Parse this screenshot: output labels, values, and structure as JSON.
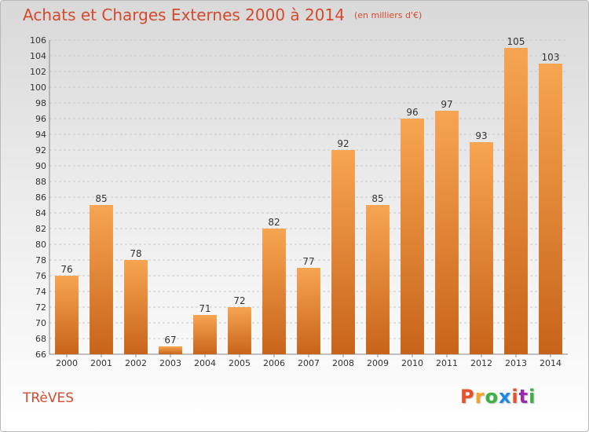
{
  "header": {
    "title": "Achats et Charges Externes 2000 à 2014",
    "unit": "(en milliers d'€)"
  },
  "footer": {
    "place": "TRèVES",
    "logo": "Proxiti",
    "logo_colors": [
      "#e8502a",
      "#f5a623",
      "#3cb043",
      "#1e88e5",
      "#e8502a",
      "#9c27b0",
      "#3cb043"
    ]
  },
  "colors": {
    "bar_light": "#f7a552",
    "bar_dark": "#c8641a",
    "title": "#d44a2c"
  },
  "chart_data": {
    "type": "bar",
    "categories": [
      "2000",
      "2001",
      "2002",
      "2003",
      "2004",
      "2005",
      "2006",
      "2007",
      "2008",
      "2009",
      "2010",
      "2011",
      "2012",
      "2013",
      "2014"
    ],
    "values": [
      76,
      85,
      78,
      67,
      71,
      72,
      82,
      77,
      92,
      85,
      96,
      97,
      93,
      105,
      103
    ],
    "ylim": [
      66,
      106
    ],
    "yticks": [
      66,
      68,
      70,
      72,
      74,
      76,
      78,
      80,
      82,
      84,
      86,
      88,
      90,
      92,
      94,
      96,
      98,
      100,
      102,
      104,
      106
    ],
    "grid": true,
    "data_labels": true
  }
}
